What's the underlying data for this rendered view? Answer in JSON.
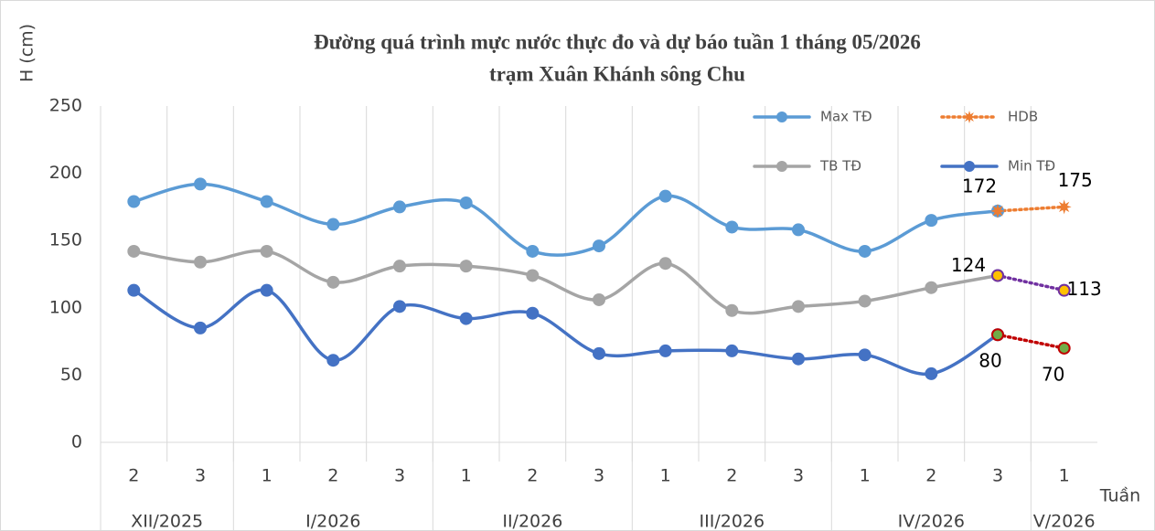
{
  "chart_data": {
    "type": "line",
    "title": "Đường quá trình mực nước thực đo và dự báo tuần 1 tháng 05/2026",
    "subtitle": "trạm Xuân Khánh sông Chu",
    "y_label": "H (cm)",
    "x_label": "Tuần",
    "categories": [
      "2",
      "3",
      "1",
      "2",
      "3",
      "1",
      "2",
      "3",
      "1",
      "2",
      "3",
      "1",
      "2",
      "3",
      "1"
    ],
    "groups": [
      {
        "label": "XII/2025",
        "span": 2
      },
      {
        "label": "I/2026",
        "span": 3
      },
      {
        "label": "II/2026",
        "span": 3
      },
      {
        "label": "III/2026",
        "span": 3
      },
      {
        "label": "IV/2026",
        "span": 3
      },
      {
        "label": "V/2026",
        "span": 1
      }
    ],
    "series": [
      {
        "name": "Max TĐ",
        "color": "#5b9bd5",
        "values": [
          179,
          192,
          179,
          162,
          175,
          178,
          142,
          146,
          183,
          160,
          158,
          142,
          165,
          172,
          null
        ]
      },
      {
        "name": "HDB",
        "color": "#ed7d31",
        "dashed": true,
        "values": [
          null,
          null,
          null,
          null,
          null,
          null,
          null,
          null,
          null,
          null,
          null,
          null,
          null,
          172,
          175
        ]
      },
      {
        "name": "TB TĐ",
        "color": "#a5a5a5",
        "values": [
          142,
          134,
          142,
          119,
          131,
          131,
          124,
          106,
          133,
          98,
          101,
          105,
          115,
          124,
          null
        ]
      },
      {
        "name": "Min TĐ",
        "color": "#4472c4",
        "values": [
          113,
          85,
          113,
          61,
          101,
          92,
          96,
          66,
          68,
          68,
          62,
          65,
          51,
          80,
          null
        ]
      },
      {
        "color": "#7030a0",
        "marker_color": "#ffc000",
        "dashed": true,
        "values": [
          null,
          null,
          null,
          null,
          null,
          null,
          null,
          null,
          null,
          null,
          null,
          null,
          null,
          124,
          113
        ]
      },
      {
        "color": "#c00000",
        "marker_color": "#70ad47",
        "dashed": true,
        "values": [
          null,
          null,
          null,
          null,
          null,
          null,
          null,
          null,
          null,
          null,
          null,
          null,
          null,
          80,
          70
        ]
      }
    ],
    "data_labels_on": [
      1,
      4,
      5
    ],
    "ylim": [
      0,
      250
    ],
    "yticks": [
      0,
      50,
      100,
      150,
      200,
      250
    ]
  }
}
